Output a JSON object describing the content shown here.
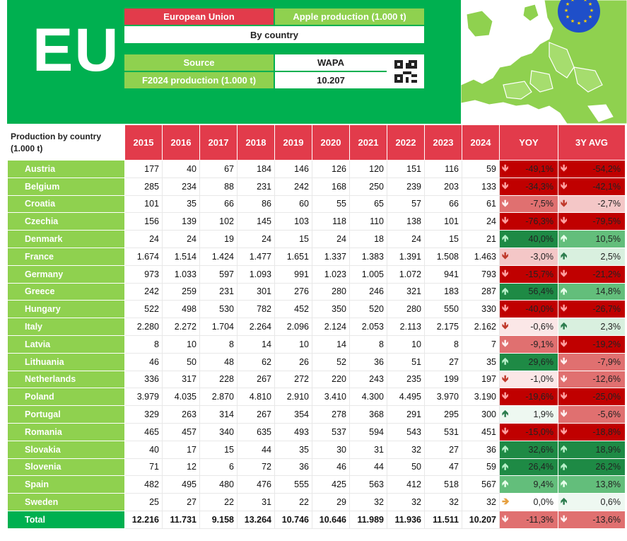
{
  "header": {
    "region_big": "EU",
    "region_label": "European Union",
    "product_label": "Apple production (1.000 t)",
    "breakdown_label": "By country",
    "source_label": "Source",
    "source_value": "WAPA",
    "forecast_label": "F2024 production (1.000 t)",
    "forecast_value": "10.207"
  },
  "table": {
    "first_header": [
      "Production by country",
      "(1.000 t)"
    ],
    "years": [
      "2015",
      "2016",
      "2017",
      "2018",
      "2019",
      "2020",
      "2021",
      "2022",
      "2023",
      "2024"
    ],
    "yoy_label": "YOY",
    "avg_label": "3Y AVG",
    "rows": [
      {
        "country": "Austria",
        "values": [
          "177",
          "40",
          "67",
          "184",
          "146",
          "126",
          "120",
          "151",
          "116",
          "59"
        ],
        "yoy": "-49,1%",
        "avg": "-54,2%"
      },
      {
        "country": "Belgium",
        "values": [
          "285",
          "234",
          "88",
          "231",
          "242",
          "168",
          "250",
          "239",
          "203",
          "133"
        ],
        "yoy": "-34,3%",
        "avg": "-42,1%"
      },
      {
        "country": "Croatia",
        "values": [
          "101",
          "35",
          "66",
          "86",
          "60",
          "55",
          "65",
          "57",
          "66",
          "61"
        ],
        "yoy": "-7,5%",
        "avg": "-2,7%"
      },
      {
        "country": "Czechia",
        "values": [
          "156",
          "139",
          "102",
          "145",
          "103",
          "118",
          "110",
          "138",
          "101",
          "24"
        ],
        "yoy": "-76,3%",
        "avg": "-79,5%"
      },
      {
        "country": "Denmark",
        "values": [
          "24",
          "24",
          "19",
          "24",
          "15",
          "24",
          "18",
          "24",
          "15",
          "21"
        ],
        "yoy": "40,0%",
        "avg": "10,5%"
      },
      {
        "country": "France",
        "values": [
          "1.674",
          "1.514",
          "1.424",
          "1.477",
          "1.651",
          "1.337",
          "1.383",
          "1.391",
          "1.508",
          "1.463"
        ],
        "yoy": "-3,0%",
        "avg": "2,5%"
      },
      {
        "country": "Germany",
        "values": [
          "973",
          "1.033",
          "597",
          "1.093",
          "991",
          "1.023",
          "1.005",
          "1.072",
          "941",
          "793"
        ],
        "yoy": "-15,7%",
        "avg": "-21,2%"
      },
      {
        "country": "Greece",
        "values": [
          "242",
          "259",
          "231",
          "301",
          "276",
          "280",
          "246",
          "321",
          "183",
          "287"
        ],
        "yoy": "56,4%",
        "avg": "14,8%"
      },
      {
        "country": "Hungary",
        "values": [
          "522",
          "498",
          "530",
          "782",
          "452",
          "350",
          "520",
          "280",
          "550",
          "330"
        ],
        "yoy": "-40,0%",
        "avg": "-26,7%"
      },
      {
        "country": "Italy",
        "values": [
          "2.280",
          "2.272",
          "1.704",
          "2.264",
          "2.096",
          "2.124",
          "2.053",
          "2.113",
          "2.175",
          "2.162"
        ],
        "yoy": "-0,6%",
        "avg": "2,3%"
      },
      {
        "country": "Latvia",
        "values": [
          "8",
          "10",
          "8",
          "14",
          "10",
          "14",
          "8",
          "10",
          "8",
          "7"
        ],
        "yoy": "-9,1%",
        "avg": "-19,2%"
      },
      {
        "country": "Lithuania",
        "values": [
          "46",
          "50",
          "48",
          "62",
          "26",
          "52",
          "36",
          "51",
          "27",
          "35"
        ],
        "yoy": "29,6%",
        "avg": "-7,9%"
      },
      {
        "country": "Netherlands",
        "values": [
          "336",
          "317",
          "228",
          "267",
          "272",
          "220",
          "243",
          "235",
          "199",
          "197"
        ],
        "yoy": "-1,0%",
        "avg": "-12,6%"
      },
      {
        "country": "Poland",
        "values": [
          "3.979",
          "4.035",
          "2.870",
          "4.810",
          "2.910",
          "3.410",
          "4.300",
          "4.495",
          "3.970",
          "3.190"
        ],
        "yoy": "-19,6%",
        "avg": "-25,0%"
      },
      {
        "country": "Portugal",
        "values": [
          "329",
          "263",
          "314",
          "267",
          "354",
          "278",
          "368",
          "291",
          "295",
          "300"
        ],
        "yoy": "1,9%",
        "avg": "-5,6%"
      },
      {
        "country": "Romania",
        "values": [
          "465",
          "457",
          "340",
          "635",
          "493",
          "537",
          "594",
          "543",
          "531",
          "451"
        ],
        "yoy": "-15,0%",
        "avg": "-18,8%"
      },
      {
        "country": "Slovakia",
        "values": [
          "40",
          "17",
          "15",
          "44",
          "35",
          "30",
          "31",
          "32",
          "27",
          "36"
        ],
        "yoy": "32,6%",
        "avg": "18,9%"
      },
      {
        "country": "Slovenia",
        "values": [
          "71",
          "12",
          "6",
          "72",
          "36",
          "46",
          "44",
          "50",
          "47",
          "59"
        ],
        "yoy": "26,4%",
        "avg": "26,2%"
      },
      {
        "country": "Spain",
        "values": [
          "482",
          "495",
          "480",
          "476",
          "555",
          "425",
          "563",
          "412",
          "518",
          "567"
        ],
        "yoy": "9,4%",
        "avg": "13,8%"
      },
      {
        "country": "Sweden",
        "values": [
          "25",
          "27",
          "22",
          "31",
          "22",
          "29",
          "32",
          "32",
          "32",
          "32"
        ],
        "yoy": "0,0%",
        "avg": "0,6%"
      }
    ],
    "total": {
      "country": "Total",
      "values": [
        "12.216",
        "11.731",
        "9.158",
        "13.264",
        "10.746",
        "10.646",
        "11.989",
        "11.936",
        "11.511",
        "10.207"
      ],
      "yoy": "-11,3%",
      "avg": "-13,6%"
    }
  },
  "colors": {
    "green": "#00b050",
    "light_green": "#8fd14f",
    "red": "#e23b4b"
  }
}
